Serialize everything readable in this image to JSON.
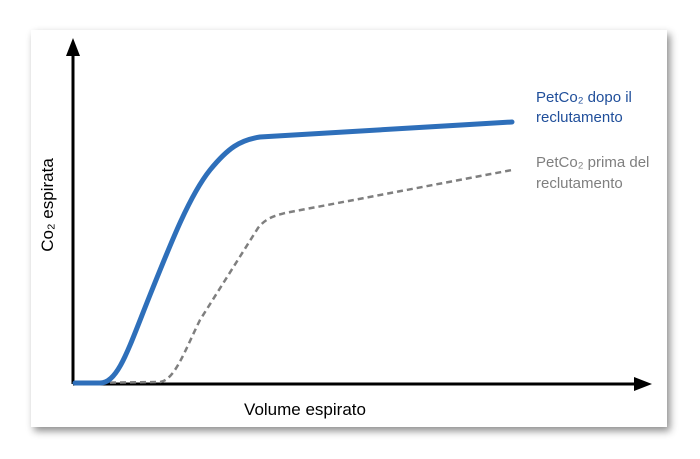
{
  "axes": {
    "y_label": "Co₂ espirata",
    "x_label": "Volume espirato"
  },
  "curves": [
    {
      "label": [
        "PetCo₂ dopo il",
        "reclutamento"
      ]
    },
    {
      "label": [
        "PetCo₂ prima del",
        "reclutamento"
      ]
    }
  ]
}
